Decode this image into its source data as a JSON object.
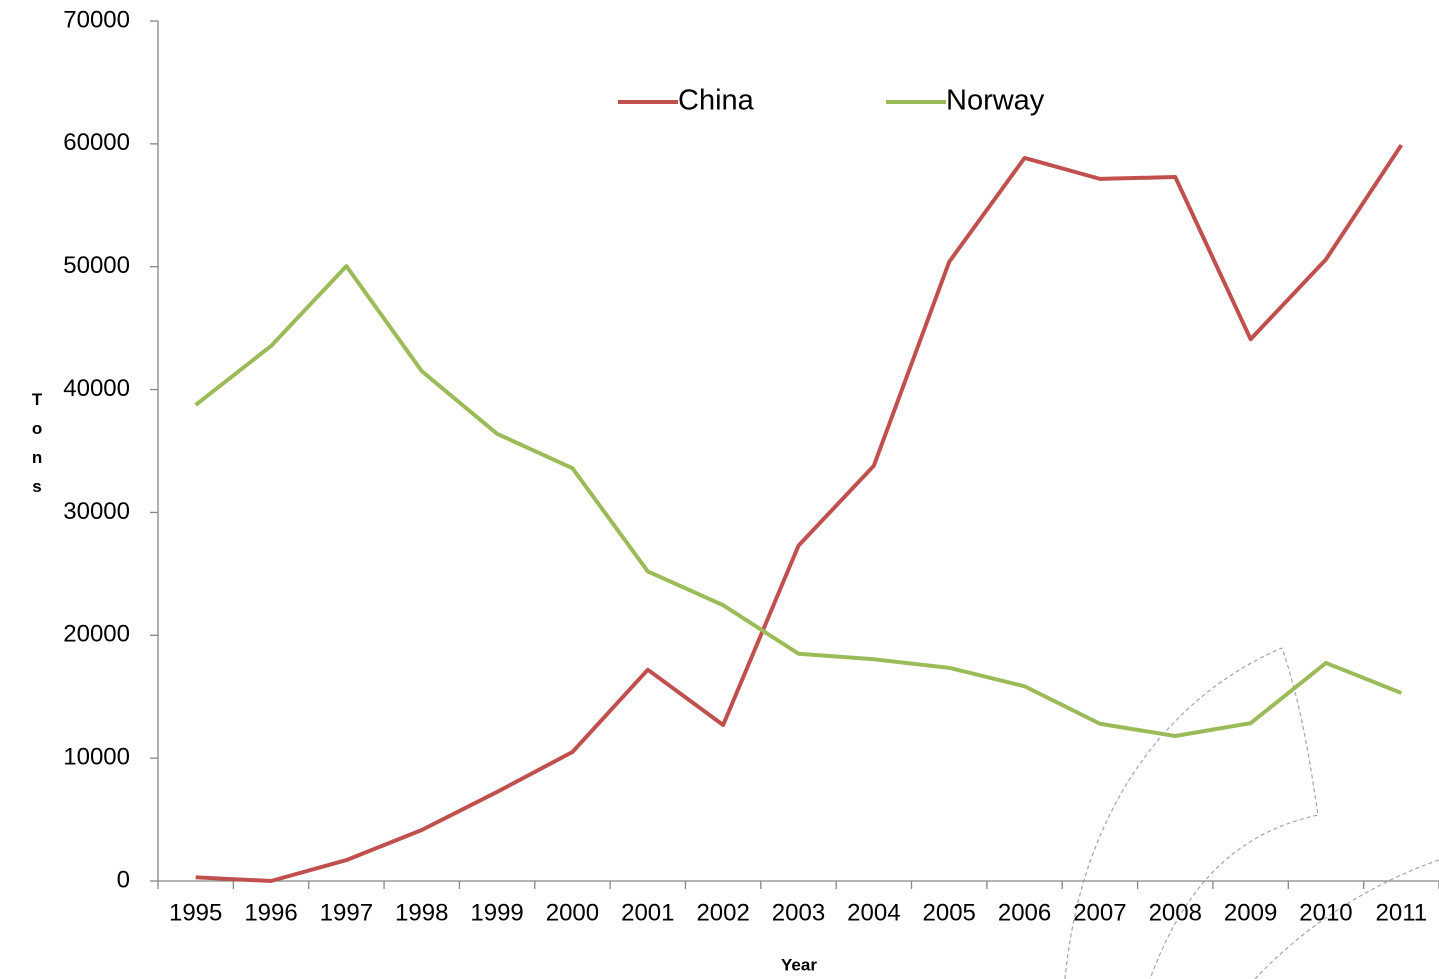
{
  "chart_data": {
    "type": "line",
    "x_label": "Year",
    "y_label": "Tons",
    "categories": [
      "1995",
      "1996",
      "1997",
      "1998",
      "1999",
      "2000",
      "2001",
      "2002",
      "2003",
      "2004",
      "2005",
      "2006",
      "2007",
      "2008",
      "2009",
      "2010",
      "2011"
    ],
    "series": [
      {
        "name": "China",
        "color": "#c0504d",
        "values": [
          300,
          0,
          1700,
          4150,
          7250,
          10500,
          17200,
          12700,
          27300,
          33800,
          50400,
          58850,
          57150,
          57300,
          44100,
          50600,
          59900
        ]
      },
      {
        "name": "Norway",
        "color": "#9bbb59",
        "values": [
          38750,
          43550,
          50050,
          41500,
          36400,
          33600,
          25200,
          22450,
          18500,
          18050,
          17350,
          15850,
          12800,
          11800,
          12850,
          17750,
          15300
        ]
      }
    ],
    "ylim": [
      0,
      70000
    ],
    "yticks": [
      0,
      10000,
      20000,
      30000,
      40000,
      50000,
      60000,
      70000
    ],
    "grid": false,
    "legend": "top"
  }
}
